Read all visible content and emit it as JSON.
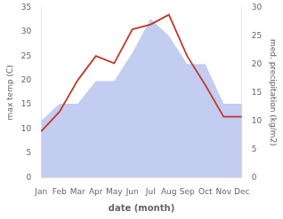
{
  "chart_data": {
    "type": "line",
    "xlabel": "date (month)",
    "ylabel": "max temp (C)",
    "y2label": "med. precipitation (kg/m2)",
    "categories": [
      "Jan",
      "Feb",
      "Mar",
      "Apr",
      "May",
      "Jun",
      "Jul",
      "Aug",
      "Sep",
      "Oct",
      "Nov",
      "Dec"
    ],
    "series": [
      {
        "type": "area",
        "color": "#b8c4ee",
        "axis": "y2",
        "values": [
          10,
          13,
          13,
          17,
          17,
          22,
          28,
          25,
          20,
          20,
          13,
          13
        ]
      },
      {
        "type": "line",
        "color": "#c0392b",
        "values": [
          9.5,
          13.5,
          20.0,
          25.0,
          23.5,
          30.5,
          31.5,
          33.5,
          25.0,
          19.0,
          12.5,
          12.5
        ]
      }
    ],
    "ylim": [
      0,
      35
    ],
    "yticks": [
      0,
      5,
      10,
      15,
      20,
      25,
      30,
      35
    ],
    "y2lim": [
      0,
      30
    ],
    "y2ticks": [
      0,
      5,
      10,
      15,
      20,
      25,
      30
    ],
    "grid": false
  }
}
